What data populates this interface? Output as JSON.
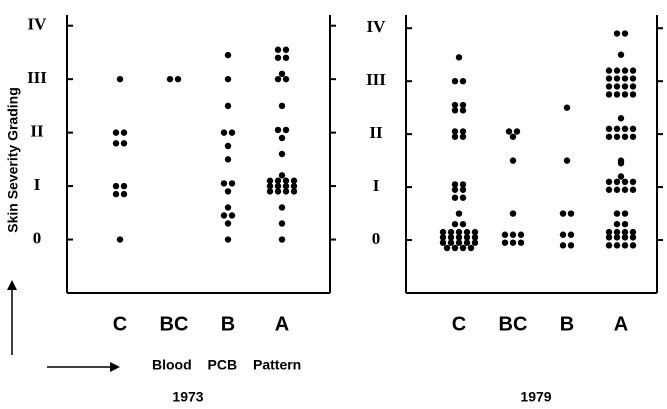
{
  "ylabel": "Skin Severity Grading",
  "xlabel": "Blood PCB Pattern",
  "chart_data": [
    {
      "type": "strip",
      "title": "1973",
      "categories": [
        "C",
        "BC",
        "B",
        "A"
      ],
      "color": "#000000",
      "ylim": [
        -1,
        4.2
      ],
      "yticks": [
        0,
        {
          "value": 1,
          "label": "I"
        },
        {
          "value": 2,
          "label": "II"
        },
        {
          "value": 3,
          "label": "III"
        },
        {
          "value": 4,
          "label": "IV"
        }
      ],
      "values": [
        [
          3,
          2,
          2,
          1.8,
          1.8,
          1,
          1,
          0.85,
          0.85,
          0
        ],
        [
          3,
          3
        ],
        [
          3.45,
          3,
          2.5,
          2,
          2,
          1.75,
          1.5,
          1.05,
          1.05,
          0.9,
          0.6,
          0.45,
          0.45,
          0.3,
          0
        ],
        [
          3.55,
          3.55,
          3.4,
          3.4,
          3.1,
          3,
          3,
          2.5,
          2.05,
          2.05,
          1.9,
          1.6,
          1.2,
          1.1,
          1.1,
          1.1,
          1.1,
          1,
          1,
          1,
          1,
          0.9,
          0.9,
          0.9,
          0.9,
          0.6,
          0.3,
          0
        ]
      ]
    },
    {
      "type": "strip",
      "title": "1979",
      "categories": [
        "C",
        "BC",
        "B",
        "A"
      ],
      "color": "#000000",
      "ylim": [
        -1,
        4.25
      ],
      "yticks": [
        0,
        {
          "value": 1,
          "label": "I"
        },
        {
          "value": 2,
          "label": "II"
        },
        {
          "value": 3,
          "label": "III"
        },
        {
          "value": 4,
          "label": "IV"
        }
      ],
      "values": [
        [
          3.45,
          3,
          3,
          2.55,
          2.55,
          2.45,
          2.45,
          2.05,
          2.05,
          1.95,
          1.95,
          1.05,
          1.05,
          0.95,
          0.95,
          0.8,
          0.8,
          0.5,
          0.3,
          0.3,
          0.15,
          0.15,
          0.15,
          0.15,
          0.15,
          0.05,
          0.05,
          0.05,
          0.05,
          0.05,
          -0.05,
          -0.05,
          -0.05,
          -0.05,
          -0.05,
          -0.15,
          -0.15,
          -0.15,
          -0.15
        ],
        [
          2.05,
          2.05,
          1.95,
          1.5,
          0.5,
          0.1,
          0.1,
          0.1,
          -0.05,
          -0.05,
          -0.05
        ],
        [
          2.5,
          1.5,
          0.5,
          0.5,
          0.1,
          0.1,
          -0.1,
          -0.1
        ],
        [
          3.9,
          3.9,
          3.5,
          3.2,
          3.2,
          3.2,
          3.2,
          3.05,
          3.05,
          3.05,
          3.05,
          2.9,
          2.9,
          2.9,
          2.9,
          2.75,
          2.75,
          2.75,
          2.75,
          2.3,
          2.1,
          2.1,
          2.1,
          2.1,
          1.95,
          1.95,
          1.95,
          1.95,
          1.5,
          1.45,
          1.2,
          1.1,
          1.1,
          1.1,
          1.1,
          0.95,
          0.95,
          0.95,
          0.95,
          0.5,
          0.5,
          0.3,
          0.3,
          0.15,
          0.15,
          0.15,
          0.15,
          0.05,
          0.05,
          0.05,
          0.05,
          -0.1,
          -0.1,
          -0.1,
          -0.1
        ]
      ]
    }
  ]
}
